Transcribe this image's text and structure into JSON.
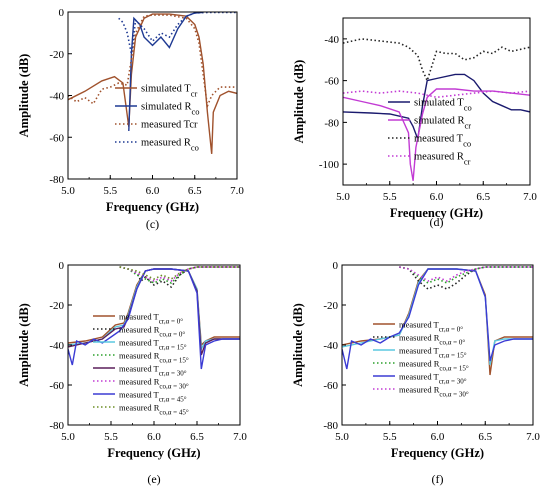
{
  "chart_data": [
    {
      "id": "c",
      "type": "line",
      "panel_label": "(c)",
      "xlabel": "Frequency (GHz)",
      "ylabel": "Amplitude (dB)",
      "xlim": [
        5.0,
        7.0
      ],
      "ylim": [
        -80,
        0
      ],
      "xticks": [
        "5.0",
        "5.5",
        "6.0",
        "6.5",
        "7.0"
      ],
      "yticks": [
        "0",
        "-20",
        "-40",
        "-60",
        "-80"
      ],
      "legend_position": "lower-right",
      "series": [
        {
          "name": "simulated T",
          "sub": "cr",
          "color": "#a0522d",
          "style": "solid",
          "x": [
            5.0,
            5.2,
            5.4,
            5.55,
            5.65,
            5.72,
            5.75,
            5.8,
            5.9,
            6.0,
            6.2,
            6.4,
            6.5,
            6.55,
            6.6,
            6.65,
            6.7,
            6.72,
            6.8,
            6.9,
            7.0
          ],
          "y": [
            -42,
            -38,
            -33,
            -31,
            -34,
            -55,
            -30,
            -12,
            -3,
            -1,
            -1,
            -2,
            -6,
            -12,
            -25,
            -48,
            -68,
            -48,
            -40,
            -38,
            -39
          ]
        },
        {
          "name": "simulated R",
          "sub": "co",
          "color": "#1f3a93",
          "style": "solid",
          "x": [
            5.72,
            5.75,
            5.78,
            5.85,
            5.9,
            6.0,
            6.1,
            6.2,
            6.3,
            6.4,
            6.5,
            6.6
          ],
          "y": [
            -57,
            -20,
            -3,
            -6,
            -12,
            -16,
            -12,
            -17,
            -8,
            -2,
            -0.5,
            -0.2
          ]
        },
        {
          "name": "measured",
          "label_tail": "Tcr",
          "color": "#a0522d",
          "style": "dotted",
          "x": [
            5.0,
            5.1,
            5.2,
            5.3,
            5.4,
            5.5,
            5.6,
            5.7,
            5.8,
            5.9,
            6.0,
            6.2,
            6.4,
            6.5,
            6.55,
            6.6,
            6.65,
            6.7,
            6.8,
            6.9,
            7.0
          ],
          "y": [
            -40,
            -43,
            -41,
            -44,
            -37,
            -36,
            -34,
            -35,
            -10,
            -2,
            -1.5,
            -1.5,
            -3,
            -8,
            -15,
            -30,
            -45,
            -40,
            -36,
            -36,
            -36
          ]
        },
        {
          "name": "measured",
          "label_tail": "R",
          "sub": "co",
          "color": "#1f3a93",
          "style": "dotted",
          "x": [
            5.6,
            5.65,
            5.7,
            5.75,
            5.8,
            5.9,
            6.0,
            6.1,
            6.2,
            6.3,
            6.4,
            6.5,
            6.6,
            6.7,
            7.0
          ],
          "y": [
            -3,
            -5,
            -10,
            -20,
            -4,
            -8,
            -14,
            -10,
            -12,
            -6,
            -2,
            -0.5,
            -0.3,
            -0.2,
            -0.2
          ]
        }
      ]
    },
    {
      "id": "d",
      "type": "line",
      "panel_label": "(d)",
      "xlabel": "Frequency (GHz)",
      "ylabel": "Amplitude (dB)",
      "xlim": [
        5.0,
        7.0
      ],
      "ylim": [
        -110,
        -30
      ],
      "xticks": [
        "5.0",
        "5.5",
        "6.0",
        "6.5",
        "7.0"
      ],
      "yticks": [
        "-40",
        "-60",
        "-80",
        "-100"
      ],
      "legend_position": "lower-right",
      "series": [
        {
          "name": "simulated T",
          "sub": "co",
          "color": "#1a1a6e",
          "style": "solid",
          "x": [
            5.0,
            5.3,
            5.5,
            5.7,
            5.75,
            5.8,
            5.85,
            5.9,
            6.0,
            6.2,
            6.3,
            6.4,
            6.5,
            6.6,
            6.7,
            6.8,
            6.9,
            7.0
          ],
          "y": [
            -75,
            -75.5,
            -76,
            -78,
            -82,
            -88,
            -72,
            -60,
            -59,
            -57,
            -57,
            -60,
            -66,
            -70,
            -72,
            -74,
            -74,
            -75
          ]
        },
        {
          "name": "simulated R",
          "sub": "cr",
          "color": "#c23bd4",
          "style": "solid",
          "x": [
            5.0,
            5.2,
            5.4,
            5.6,
            5.7,
            5.72,
            5.75,
            5.78,
            5.85,
            5.9,
            6.0,
            6.2,
            6.4,
            6.6,
            6.8,
            7.0
          ],
          "y": [
            -68,
            -70,
            -72,
            -75,
            -85,
            -100,
            -108,
            -92,
            -76,
            -68,
            -64,
            -64,
            -65,
            -65,
            -66,
            -67
          ]
        },
        {
          "name": "measured T",
          "sub": "co",
          "color": "#222222",
          "style": "dotted",
          "x": [
            5.0,
            5.2,
            5.4,
            5.6,
            5.7,
            5.8,
            5.85,
            5.9,
            6.0,
            6.1,
            6.2,
            6.3,
            6.4,
            6.5,
            6.6,
            6.7,
            6.8,
            6.9,
            7.0
          ],
          "y": [
            -42,
            -40,
            -41,
            -42,
            -44,
            -48,
            -55,
            -60,
            -46,
            -47,
            -47,
            -50,
            -49,
            -46,
            -47,
            -44,
            -46,
            -45,
            -44
          ]
        },
        {
          "name": "measured R",
          "sub": "cr",
          "color": "#c23bd4",
          "style": "dotted",
          "x": [
            5.0,
            5.2,
            5.4,
            5.6,
            5.8,
            6.0,
            6.2,
            6.4,
            6.6,
            6.8,
            7.0
          ],
          "y": [
            -66,
            -65,
            -66,
            -65,
            -66,
            -68,
            -67,
            -66,
            -65,
            -66,
            -65
          ]
        }
      ]
    },
    {
      "id": "e",
      "type": "line",
      "panel_label": "(e)",
      "xlabel": "Frequency (GHz)",
      "ylabel": "Amplitude (dB)",
      "xlim": [
        5.0,
        7.0
      ],
      "ylim": [
        -80,
        0
      ],
      "xticks": [
        "5.0",
        "5.5",
        "6.0",
        "6.5",
        "7.0"
      ],
      "yticks": [
        "0",
        "-20",
        "-40",
        "-60",
        "-80"
      ],
      "legend_position": "lower-center",
      "series": [
        {
          "name": "measured T",
          "sub": "cr,α = 0°",
          "color": "#a0522d",
          "style": "solid",
          "x": [
            5.0,
            5.2,
            5.4,
            5.55,
            5.65,
            5.7,
            5.8,
            5.9,
            6.0,
            6.2,
            6.4,
            6.5,
            6.55,
            6.6,
            6.7,
            6.8,
            7.0
          ],
          "y": [
            -39,
            -38,
            -36,
            -30,
            -29,
            -24,
            -10,
            -3,
            -2,
            -2,
            -3,
            -12,
            -40,
            -38,
            -36,
            -36,
            -36
          ]
        },
        {
          "name": "measured R",
          "sub": "co,α = 0°",
          "color": "#222222",
          "style": "dotted",
          "x": [
            5.6,
            5.7,
            5.8,
            5.85,
            5.9,
            6.0,
            6.1,
            6.2,
            6.3,
            6.4,
            6.5,
            7.0
          ],
          "y": [
            -1,
            -2,
            -4,
            -8,
            -6,
            -10,
            -8,
            -11,
            -5,
            -2,
            -1,
            -1
          ]
        },
        {
          "name": "measured T",
          "sub": "cr,α = 15°",
          "color": "#5bc8e0",
          "style": "solid",
          "x": [
            5.0,
            5.2,
            5.4,
            5.55,
            5.65,
            5.7,
            5.8,
            5.9,
            6.0,
            6.2,
            6.4,
            6.5,
            6.55,
            6.6,
            6.7,
            6.8,
            7.0
          ],
          "y": [
            -40,
            -39,
            -37,
            -31,
            -30,
            -25,
            -11,
            -3,
            -2,
            -2,
            -3,
            -12,
            -42,
            -38,
            -37,
            -37,
            -37
          ]
        },
        {
          "name": "measured R",
          "sub": "co,α = 15°",
          "color": "#2ca02c",
          "style": "dotted",
          "x": [
            5.6,
            5.7,
            5.8,
            5.9,
            6.0,
            6.1,
            6.2,
            6.3,
            6.4,
            6.5,
            7.0
          ],
          "y": [
            -1,
            -2,
            -5,
            -7,
            -9,
            -7,
            -9,
            -5,
            -2,
            -1,
            -1
          ]
        },
        {
          "name": "measured T",
          "sub": "cr,α = 30°",
          "color": "#5a1e5a",
          "style": "solid",
          "x": [
            5.0,
            5.2,
            5.4,
            5.55,
            5.65,
            5.7,
            5.8,
            5.9,
            6.0,
            6.2,
            6.4,
            6.5,
            6.55,
            6.6,
            6.7,
            6.8,
            7.0
          ],
          "y": [
            -41,
            -39,
            -37,
            -32,
            -31,
            -26,
            -12,
            -3,
            -2,
            -2,
            -3,
            -13,
            -45,
            -39,
            -37,
            -37,
            -37
          ]
        },
        {
          "name": "measured R",
          "sub": "co,α = 30°",
          "color": "#c23bd4",
          "style": "dotted",
          "x": [
            5.6,
            5.7,
            5.8,
            5.9,
            6.0,
            6.1,
            6.2,
            6.3,
            6.4,
            6.5,
            7.0
          ],
          "y": [
            -1,
            -2,
            -4,
            -6,
            -8,
            -6,
            -8,
            -4,
            -2,
            -1,
            -1
          ]
        },
        {
          "name": "measured T",
          "sub": "cr,α = 45°",
          "color": "#3b3bd4",
          "style": "solid",
          "x": [
            5.0,
            5.05,
            5.1,
            5.2,
            5.3,
            5.4,
            5.5,
            5.6,
            5.7,
            5.8,
            5.9,
            6.0,
            6.2,
            6.4,
            6.5,
            6.55,
            6.6,
            6.7,
            6.8,
            6.9,
            7.0
          ],
          "y": [
            -42,
            -50,
            -38,
            -40,
            -37,
            -39,
            -36,
            -33,
            -27,
            -12,
            -3,
            -2,
            -2,
            -3,
            -14,
            -52,
            -40,
            -38,
            -37,
            -37,
            -37
          ]
        },
        {
          "name": "measured R",
          "sub": "co,α = 45°",
          "color": "#6b8e23",
          "style": "dotted",
          "x": [
            5.6,
            5.7,
            5.8,
            5.9,
            6.0,
            6.1,
            6.2,
            6.3,
            6.4,
            6.5,
            7.0
          ],
          "y": [
            -1,
            -2,
            -3,
            -5,
            -7,
            -5,
            -7,
            -4,
            -2,
            -1,
            -1
          ]
        }
      ]
    },
    {
      "id": "f",
      "type": "line",
      "panel_label": "(f)",
      "xlabel": "Frequency (GHz)",
      "ylabel": "Amplitude (dB)",
      "xlim": [
        5.0,
        7.0
      ],
      "ylim": [
        -80,
        0
      ],
      "xticks": [
        "5.0",
        "5.5",
        "6.0",
        "6.5",
        "7.0"
      ],
      "yticks": [
        "0",
        "-20",
        "-40",
        "-60",
        "-80"
      ],
      "legend_position": "lower-center",
      "series": [
        {
          "name": "measured T",
          "sub": "cr,α = 0°",
          "color": "#a0522d",
          "style": "solid",
          "x": [
            5.0,
            5.2,
            5.4,
            5.6,
            5.7,
            5.8,
            5.9,
            6.0,
            6.2,
            6.4,
            6.5,
            6.55,
            6.6,
            6.7,
            6.8,
            7.0
          ],
          "y": [
            -40,
            -38,
            -37,
            -35,
            -24,
            -8,
            -2,
            -2,
            -2,
            -3,
            -15,
            -55,
            -38,
            -36,
            -36,
            -36
          ]
        },
        {
          "name": "measured R",
          "sub": "co,α = 0°",
          "color": "#222222",
          "style": "dotted",
          "x": [
            5.6,
            5.7,
            5.8,
            5.9,
            6.0,
            6.1,
            6.2,
            6.3,
            6.4,
            6.5,
            7.0
          ],
          "y": [
            -1,
            -2,
            -8,
            -12,
            -10,
            -12,
            -9,
            -5,
            -2,
            -1,
            -1
          ]
        },
        {
          "name": "measured T",
          "sub": "cr,α = 15°",
          "color": "#5bc8e0",
          "style": "solid",
          "x": [
            5.0,
            5.2,
            5.4,
            5.6,
            5.7,
            5.8,
            5.9,
            6.0,
            6.2,
            6.4,
            6.5,
            6.55,
            6.6,
            6.7,
            6.8,
            7.0
          ],
          "y": [
            -41,
            -39,
            -37,
            -35,
            -25,
            -9,
            -2,
            -2,
            -2,
            -3,
            -16,
            -50,
            -38,
            -37,
            -37,
            -37
          ]
        },
        {
          "name": "measured R",
          "sub": "co,α = 15°",
          "color": "#2ca02c",
          "style": "dotted",
          "x": [
            5.6,
            5.7,
            5.8,
            5.9,
            6.0,
            6.1,
            6.2,
            6.3,
            6.4,
            6.5,
            7.0
          ],
          "y": [
            -1,
            -2,
            -6,
            -9,
            -7,
            -9,
            -6,
            -4,
            -2,
            -1,
            -1
          ]
        },
        {
          "name": "measured T",
          "sub": "cr,α = 30°",
          "color": "#3b3bd4",
          "style": "solid",
          "x": [
            5.0,
            5.05,
            5.1,
            5.2,
            5.3,
            5.4,
            5.5,
            5.6,
            5.7,
            5.8,
            5.9,
            6.0,
            6.2,
            6.4,
            6.5,
            6.55,
            6.6,
            6.7,
            6.8,
            6.9,
            7.0
          ],
          "y": [
            -42,
            -52,
            -38,
            -40,
            -37,
            -39,
            -36,
            -34,
            -26,
            -10,
            -2,
            -2,
            -2,
            -3,
            -16,
            -48,
            -40,
            -38,
            -37,
            -37,
            -37
          ]
        },
        {
          "name": "measured R",
          "sub": "co,α = 30°",
          "color": "#c23bd4",
          "style": "dotted",
          "x": [
            5.6,
            5.7,
            5.8,
            5.9,
            6.0,
            6.1,
            6.2,
            6.3,
            6.4,
            6.5,
            7.0
          ],
          "y": [
            -1,
            -2,
            -5,
            -8,
            -6,
            -8,
            -5,
            -3,
            -2,
            -1,
            -1
          ]
        }
      ]
    }
  ]
}
